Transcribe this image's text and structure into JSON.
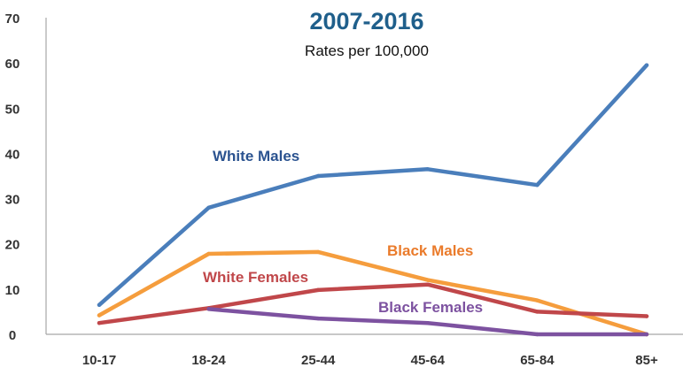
{
  "chart_data": {
    "type": "line",
    "title": "2007-2016",
    "subtitle": "Rates per 100,000",
    "xlabel": "",
    "ylabel": "",
    "categories": [
      "10-17",
      "18-24",
      "25-44",
      "45-64",
      "65-84",
      "85+"
    ],
    "ylim": [
      0,
      70
    ],
    "yticks": [
      0,
      10,
      20,
      30,
      40,
      50,
      60,
      70
    ],
    "grid": false,
    "series": [
      {
        "name": "White Males",
        "color": "#4a7ebb",
        "label_color": "#2b5390",
        "values": [
          6.5,
          28,
          35,
          36.5,
          33,
          59.5
        ]
      },
      {
        "name": "Black Males",
        "color": "#f59d3d",
        "label_color": "#ea7b2b",
        "values": [
          4.2,
          17.8,
          18.2,
          12,
          7.5,
          0
        ]
      },
      {
        "name": "White Females",
        "color": "#c0474a",
        "label_color": "#c0474a",
        "values": [
          2.5,
          5.8,
          9.8,
          11,
          5,
          4
        ]
      },
      {
        "name": "Black Females",
        "color": "#7d52a0",
        "label_color": "#7d52a0",
        "values": [
          null,
          5.6,
          3.5,
          2.5,
          0,
          0
        ]
      }
    ]
  }
}
